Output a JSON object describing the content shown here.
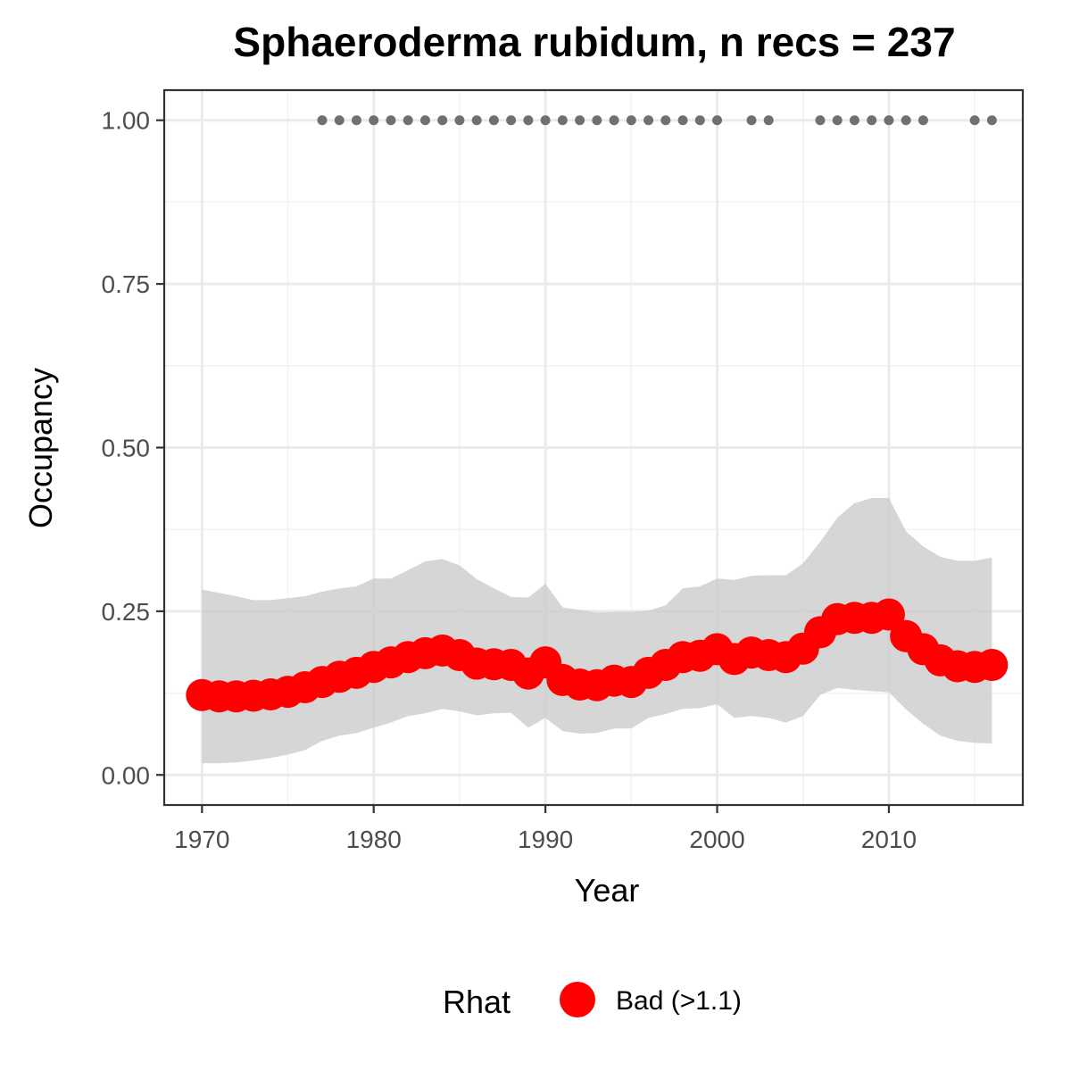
{
  "chart_data": {
    "type": "line",
    "title": "Sphaeroderma rubidum, n recs = 237",
    "xlabel": "Year",
    "ylabel": "Occupancy",
    "xlim": [
      1967.8,
      2017.8
    ],
    "ylim": [
      -0.046,
      1.046
    ],
    "x_ticks": [
      1970,
      1980,
      1990,
      2000,
      2010
    ],
    "x_tick_labels": [
      "1970",
      "1980",
      "1990",
      "2000",
      "2010"
    ],
    "y_ticks": [
      0,
      0.25,
      0.5,
      0.75,
      1.0
    ],
    "y_tick_labels": [
      "0.00",
      "0.25",
      "0.50",
      "0.75",
      "1.00"
    ],
    "grid": true,
    "years": [
      1970,
      1971,
      1972,
      1973,
      1974,
      1975,
      1976,
      1977,
      1978,
      1979,
      1980,
      1981,
      1982,
      1983,
      1984,
      1985,
      1986,
      1987,
      1988,
      1989,
      1990,
      1991,
      1992,
      1993,
      1994,
      1995,
      1996,
      1997,
      1998,
      1999,
      2000,
      2001,
      2002,
      2003,
      2004,
      2005,
      2006,
      2007,
      2008,
      2009,
      2010,
      2011,
      2012,
      2013,
      2014,
      2015,
      2016
    ],
    "occupancy": [
      0.122,
      0.12,
      0.12,
      0.121,
      0.123,
      0.127,
      0.134,
      0.142,
      0.15,
      0.156,
      0.165,
      0.172,
      0.18,
      0.186,
      0.19,
      0.183,
      0.17,
      0.169,
      0.168,
      0.155,
      0.172,
      0.145,
      0.138,
      0.137,
      0.144,
      0.142,
      0.156,
      0.168,
      0.18,
      0.182,
      0.192,
      0.177,
      0.187,
      0.183,
      0.18,
      0.193,
      0.218,
      0.238,
      0.24,
      0.24,
      0.245,
      0.212,
      0.192,
      0.175,
      0.166,
      0.165,
      0.168
    ],
    "lower": [
      0.018,
      0.018,
      0.019,
      0.022,
      0.026,
      0.031,
      0.038,
      0.052,
      0.06,
      0.064,
      0.072,
      0.08,
      0.09,
      0.094,
      0.101,
      0.097,
      0.091,
      0.094,
      0.095,
      0.072,
      0.087,
      0.067,
      0.063,
      0.064,
      0.071,
      0.071,
      0.087,
      0.093,
      0.101,
      0.102,
      0.108,
      0.087,
      0.09,
      0.087,
      0.08,
      0.09,
      0.122,
      0.133,
      0.13,
      0.128,
      0.126,
      0.1,
      0.078,
      0.06,
      0.052,
      0.049,
      0.048
    ],
    "upper": [
      0.283,
      0.278,
      0.273,
      0.267,
      0.267,
      0.27,
      0.273,
      0.28,
      0.285,
      0.288,
      0.3,
      0.3,
      0.313,
      0.326,
      0.33,
      0.32,
      0.299,
      0.285,
      0.272,
      0.271,
      0.292,
      0.256,
      0.252,
      0.248,
      0.249,
      0.249,
      0.251,
      0.259,
      0.285,
      0.288,
      0.3,
      0.298,
      0.304,
      0.305,
      0.305,
      0.323,
      0.356,
      0.393,
      0.415,
      0.423,
      0.423,
      0.372,
      0.349,
      0.333,
      0.327,
      0.327,
      0.332
    ],
    "record_years": [
      1977,
      1978,
      1979,
      1980,
      1981,
      1982,
      1983,
      1984,
      1985,
      1986,
      1987,
      1988,
      1989,
      1990,
      1991,
      1992,
      1993,
      1994,
      1995,
      1996,
      1997,
      1998,
      1999,
      2000,
      2002,
      2003,
      2006,
      2007,
      2008,
      2009,
      2010,
      2011,
      2012,
      2015,
      2016
    ],
    "record_y": 1.0,
    "ribbon_color": "#cccccc",
    "line_color": "#ff0000",
    "record_color": "#707070",
    "legend": {
      "title": "Rhat",
      "placement": "bottom",
      "entries": [
        {
          "label": "Bad (>1.1)",
          "color": "#ff0000"
        }
      ]
    }
  }
}
